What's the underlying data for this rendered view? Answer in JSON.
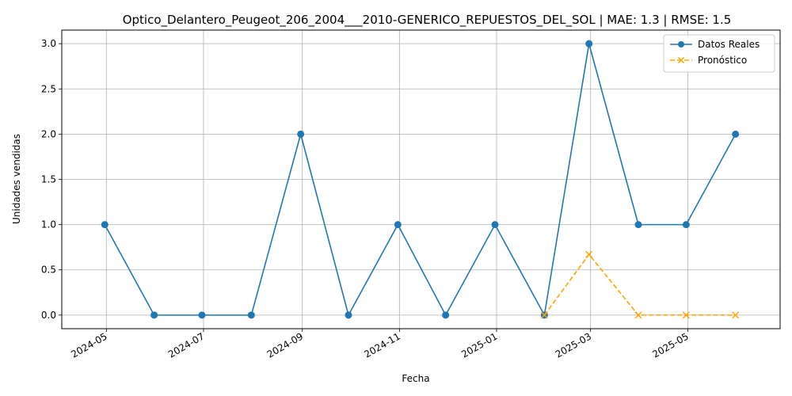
{
  "chart_data": {
    "type": "line",
    "title": "Optico_Delantero_Peugeot_206_2004___2010-GENERICO_REPUESTOS_DEL_SOL | MAE: 1.3 | RMSE: 1.5",
    "xlabel": "Fecha",
    "ylabel": "Unidades vendidas",
    "x_ticks": [
      "2024-05",
      "2024-07",
      "2024-09",
      "2024-11",
      "2025-01",
      "2025-03",
      "2025-05"
    ],
    "y_ticks": [
      "0.0",
      "0.5",
      "1.0",
      "1.5",
      "2.0",
      "2.5",
      "3.0"
    ],
    "ylim": [
      -0.15,
      3.15
    ],
    "xlim": [
      "2024-04-03",
      "2025-06-28"
    ],
    "grid": true,
    "legend_position": "top-right",
    "series": [
      {
        "name": "Datos Reales",
        "color": "#1f77b4",
        "style": "solid",
        "marker": "circle",
        "x": [
          "2024-04-30",
          "2024-05-31",
          "2024-06-30",
          "2024-07-31",
          "2024-08-31",
          "2024-09-30",
          "2024-10-31",
          "2024-11-30",
          "2024-12-31",
          "2025-01-31",
          "2025-02-28",
          "2025-03-31",
          "2025-04-30",
          "2025-05-31"
        ],
        "values": [
          1,
          0,
          0,
          0,
          2,
          0,
          1,
          0,
          1,
          0,
          3,
          1,
          1,
          2
        ]
      },
      {
        "name": "Pronóstico",
        "color": "#ffa500",
        "style": "dashed",
        "marker": "x",
        "x": [
          "2025-01-31",
          "2025-02-28",
          "2025-03-31",
          "2025-04-30",
          "2025-05-31"
        ],
        "values": [
          0,
          0.67,
          0,
          0,
          0
        ]
      }
    ]
  }
}
